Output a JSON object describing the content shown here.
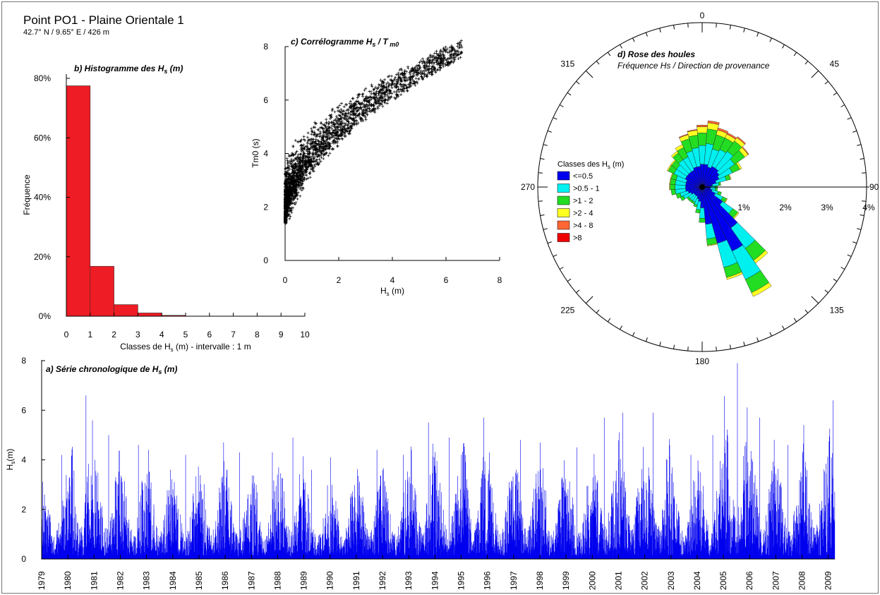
{
  "page": {
    "title": "Point PO1 - Plaine Orientale 1",
    "subtitle": "42.7° N / 9.65° E / 426 m"
  },
  "colors": {
    "hist_bar": "#ee1c24",
    "ts_line": "#0000ee",
    "scatter": "#000000"
  },
  "chart_data": [
    {
      "id": "histogram",
      "type": "bar",
      "title": "b) Histogramme des Hs (m)",
      "xlabel": "Classes de Hs (m) - intervalle : 1 m",
      "ylabel": "Fréquence",
      "bin_edges": [
        0,
        1,
        2,
        3,
        4,
        5
      ],
      "values": [
        77.5,
        16.8,
        3.9,
        1.1,
        0.3
      ],
      "xlim": [
        0,
        10
      ],
      "ylim": [
        0,
        80
      ],
      "x_ticks": [
        "0",
        "1",
        "2",
        "3",
        "4",
        "5",
        "6",
        "7",
        "8",
        "9",
        "10"
      ],
      "y_ticks": [
        "0%",
        "20%",
        "40%",
        "60%",
        "80%"
      ]
    },
    {
      "id": "correlogram",
      "type": "scatter",
      "title": "c) Corrélogramme Hs / Tm0",
      "xlabel": "Hs (m)",
      "ylabel": "Tm0 (s)",
      "xlim": [
        0,
        8
      ],
      "ylim": [
        0,
        8
      ],
      "x_ticks": [
        "0",
        "2",
        "4",
        "6",
        "8"
      ],
      "y_ticks": [
        "0",
        "2",
        "4",
        "6",
        "8"
      ],
      "relation": "Tm0 ≈ 1.6 + 2.2·Hs^0.55 (cloud, Hs 0–8 m, Tm0 1.4–7.4 s)"
    },
    {
      "id": "wave_rose",
      "type": "rose",
      "title": "d) Rose des houles",
      "subtitle": "Fréquence Hs / Direction de provenance",
      "legend_title": "Classes des Hs (m)",
      "direction_labels": [
        "0",
        "45",
        "90",
        "135",
        "180",
        "225",
        "270",
        "315"
      ],
      "radial_labels": [
        "1%",
        "2%",
        "3%",
        "4%"
      ],
      "classes": [
        {
          "label": "<=0.5",
          "color": "#0000ee"
        },
        {
          "label": ">0.5 - 1",
          "color": "#00f0f0"
        },
        {
          "label": ">1 - 2",
          "color": "#22dd22"
        },
        {
          "label": ">2 - 4",
          "color": "#ffff22"
        },
        {
          "label": ">4 - 8",
          "color": "#ff6633"
        },
        {
          "label": ">8",
          "color": "#ee0000"
        }
      ],
      "sector_width_deg": 10,
      "sectors": [
        {
          "dir": 0,
          "v": [
            0.55,
            0.45,
            0.3,
            0.15,
            0.04,
            0
          ]
        },
        {
          "dir": 10,
          "v": [
            0.55,
            0.5,
            0.35,
            0.15,
            0.05,
            0
          ]
        },
        {
          "dir": 20,
          "v": [
            0.5,
            0.45,
            0.35,
            0.12,
            0.05,
            0
          ]
        },
        {
          "dir": 30,
          "v": [
            0.55,
            0.45,
            0.3,
            0.1,
            0.04,
            0
          ]
        },
        {
          "dir": 40,
          "v": [
            0.55,
            0.5,
            0.3,
            0.1,
            0.03,
            0
          ]
        },
        {
          "dir": 50,
          "v": [
            0.5,
            0.45,
            0.3,
            0.1,
            0.02,
            0
          ]
        },
        {
          "dir": 60,
          "v": [
            0.45,
            0.35,
            0.2,
            0.05,
            0,
            0
          ]
        },
        {
          "dir": 70,
          "v": [
            0.35,
            0.25,
            0.1,
            0.02,
            0,
            0
          ]
        },
        {
          "dir": 80,
          "v": [
            0.25,
            0.15,
            0.05,
            0,
            0,
            0
          ]
        },
        {
          "dir": 90,
          "v": [
            0.2,
            0.12,
            0.05,
            0,
            0,
            0
          ]
        },
        {
          "dir": 100,
          "v": [
            0.2,
            0.12,
            0.05,
            0,
            0,
            0
          ]
        },
        {
          "dir": 110,
          "v": [
            0.25,
            0.15,
            0.08,
            0,
            0,
            0
          ]
        },
        {
          "dir": 120,
          "v": [
            0.35,
            0.2,
            0.1,
            0.02,
            0,
            0
          ]
        },
        {
          "dir": 130,
          "v": [
            0.6,
            0.3,
            0.15,
            0.03,
            0,
            0
          ]
        },
        {
          "dir": 140,
          "v": [
            1.2,
            0.6,
            0.35,
            0.08,
            0,
            0
          ]
        },
        {
          "dir": 150,
          "v": [
            1.7,
            0.75,
            0.35,
            0.1,
            0,
            0
          ]
        },
        {
          "dir": 160,
          "v": [
            1.4,
            0.6,
            0.25,
            0.05,
            0,
            0
          ]
        },
        {
          "dir": 170,
          "v": [
            0.9,
            0.35,
            0.15,
            0.02,
            0,
            0
          ]
        },
        {
          "dir": 180,
          "v": [
            0.5,
            0.25,
            0.1,
            0,
            0,
            0
          ]
        },
        {
          "dir": 190,
          "v": [
            0.35,
            0.2,
            0.08,
            0,
            0,
            0
          ]
        },
        {
          "dir": 200,
          "v": [
            0.3,
            0.15,
            0.05,
            0,
            0,
            0
          ]
        },
        {
          "dir": 210,
          "v": [
            0.25,
            0.15,
            0.05,
            0,
            0,
            0
          ]
        },
        {
          "dir": 220,
          "v": [
            0.25,
            0.15,
            0.05,
            0,
            0,
            0
          ]
        },
        {
          "dir": 230,
          "v": [
            0.25,
            0.15,
            0.05,
            0,
            0,
            0
          ]
        },
        {
          "dir": 240,
          "v": [
            0.3,
            0.2,
            0.08,
            0,
            0,
            0
          ]
        },
        {
          "dir": 250,
          "v": [
            0.35,
            0.2,
            0.1,
            0,
            0,
            0
          ]
        },
        {
          "dir": 260,
          "v": [
            0.4,
            0.25,
            0.1,
            0,
            0,
            0
          ]
        },
        {
          "dir": 270,
          "v": [
            0.4,
            0.25,
            0.12,
            0.02,
            0,
            0
          ]
        },
        {
          "dir": 280,
          "v": [
            0.4,
            0.25,
            0.12,
            0.02,
            0,
            0
          ]
        },
        {
          "dir": 290,
          "v": [
            0.4,
            0.25,
            0.12,
            0.02,
            0,
            0
          ]
        },
        {
          "dir": 300,
          "v": [
            0.45,
            0.3,
            0.15,
            0.03,
            0,
            0
          ]
        },
        {
          "dir": 310,
          "v": [
            0.45,
            0.3,
            0.15,
            0.03,
            0,
            0
          ]
        },
        {
          "dir": 320,
          "v": [
            0.45,
            0.35,
            0.2,
            0.05,
            0,
            0
          ]
        },
        {
          "dir": 330,
          "v": [
            0.45,
            0.35,
            0.25,
            0.08,
            0,
            0
          ]
        },
        {
          "dir": 340,
          "v": [
            0.5,
            0.4,
            0.3,
            0.1,
            0.02,
            0
          ]
        },
        {
          "dir": 350,
          "v": [
            0.5,
            0.45,
            0.3,
            0.12,
            0.02,
            0
          ]
        }
      ]
    },
    {
      "id": "time_series",
      "type": "line",
      "title": "a) Série chronologique de Hs (m)",
      "ylabel": "Hs (m)",
      "xlim": [
        1979,
        2009.25
      ],
      "ylim": [
        0,
        8
      ],
      "y_ticks": [
        "0",
        "2",
        "4",
        "6",
        "8"
      ],
      "years": [
        "1979",
        "1980",
        "1981",
        "1982",
        "1983",
        "1984",
        "1985",
        "1986",
        "1987",
        "1988",
        "1989",
        "1990",
        "1991",
        "1992",
        "1993",
        "1994",
        "1995",
        "1996",
        "1997",
        "1998",
        "1999",
        "2000",
        "2001",
        "2002",
        "2003",
        "2004",
        "2005",
        "2006",
        "2007",
        "2008",
        "2009"
      ],
      "annual_max": [
        4.2,
        6.6,
        5.0,
        4.6,
        4.4,
        4.2,
        4.7,
        4.3,
        4.3,
        4.9,
        3.6,
        4.1,
        4.4,
        4.2,
        5.5,
        4.9,
        5.7,
        4.3,
        4.8,
        4.7,
        4.5,
        5.7,
        5.9,
        5.9,
        4.2,
        5.0,
        7.9,
        5.7,
        4.6,
        5.4,
        6.4
      ]
    }
  ]
}
